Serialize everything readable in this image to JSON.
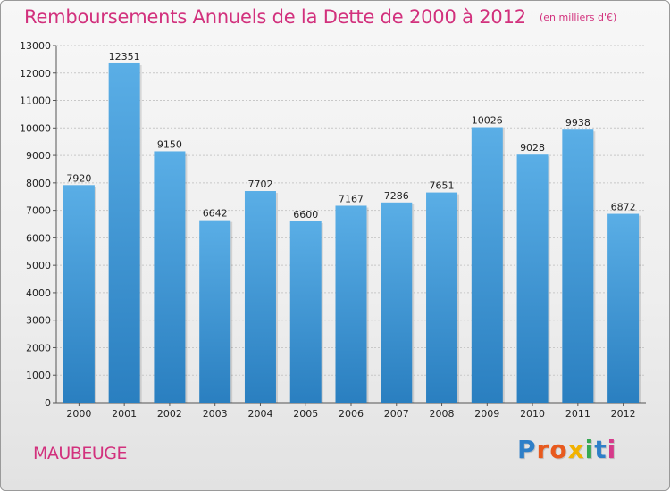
{
  "chart_data": {
    "type": "bar",
    "title": "Remboursements Annuels de la Dette de 2000 à 2012",
    "subtitle": "(en milliers d'€)",
    "categories": [
      "2000",
      "2001",
      "2002",
      "2003",
      "2004",
      "2005",
      "2006",
      "2007",
      "2008",
      "2009",
      "2010",
      "2011",
      "2012"
    ],
    "values": [
      7920,
      12351,
      9150,
      6642,
      7702,
      6600,
      7167,
      7286,
      7651,
      10026,
      9028,
      9938,
      6872
    ],
    "ylim": [
      0,
      13000
    ],
    "yticks": [
      0,
      1000,
      2000,
      3000,
      4000,
      5000,
      6000,
      7000,
      8000,
      9000,
      10000,
      11000,
      12000,
      13000
    ],
    "xlabel": "",
    "ylabel": "",
    "grid": true,
    "bar_color_top": "#5aaee6",
    "bar_color_bottom": "#2a7fc0"
  },
  "footer": {
    "city": "MAUBEUGE",
    "logo_letters": [
      "P",
      "r",
      "o",
      "x",
      "i",
      "t",
      "i"
    ],
    "logo_colors": [
      "#2e7fc8",
      "#e85a1e",
      "#e85a1e",
      "#f2b200",
      "#35a853",
      "#2e7fc8",
      "#d63a8a"
    ]
  },
  "colors": {
    "title": "#d2317d",
    "grid": "#c8c8c8",
    "axis": "#555555"
  }
}
